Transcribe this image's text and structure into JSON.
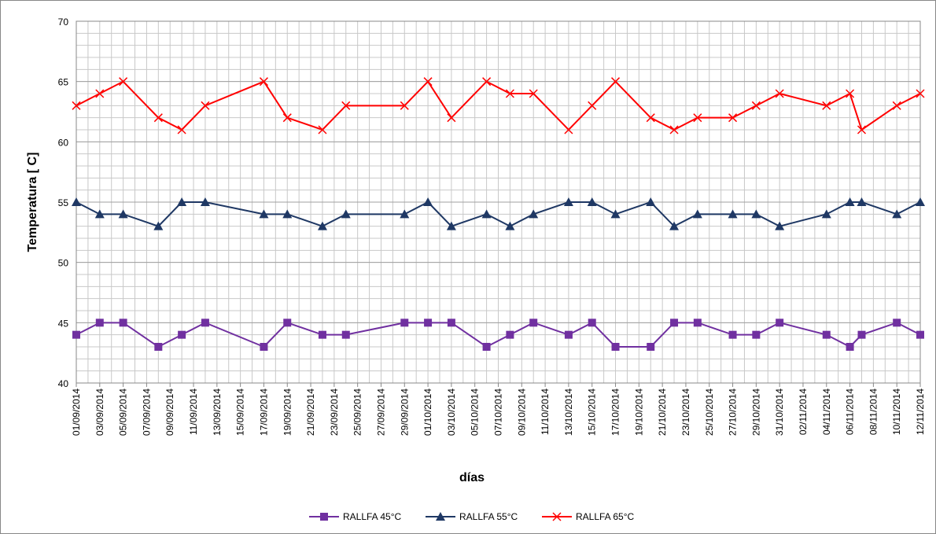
{
  "chart_data": {
    "type": "line",
    "x_label": "días",
    "y_label": "Temperatura [ C]",
    "x": [
      "01/09/2014",
      "03/09/2014",
      "05/09/2014",
      "08/09/2014",
      "10/09/2014",
      "12/09/2014",
      "17/09/2014",
      "19/09/2014",
      "22/09/2014",
      "24/09/2014",
      "29/09/2014",
      "01/10/2014",
      "03/10/2014",
      "06/10/2014",
      "08/10/2014",
      "10/10/2014",
      "13/10/2014",
      "15/10/2014",
      "17/10/2014",
      "20/10/2014",
      "22/10/2014",
      "24/10/2014",
      "27/10/2014",
      "29/10/2014",
      "31/10/2014",
      "04/11/2014",
      "06/11/2014",
      "07/11/2014",
      "10/11/2014",
      "12/11/2014"
    ],
    "xlim": [
      "01/09/2014",
      "12/11/2014"
    ],
    "xticks": [
      "01/09/2014",
      "03/09/2014",
      "05/09/2014",
      "07/09/2014",
      "09/09/2014",
      "11/09/2014",
      "13/09/2014",
      "15/09/2014",
      "17/09/2014",
      "19/09/2014",
      "21/09/2014",
      "23/09/2014",
      "25/09/2014",
      "27/09/2014",
      "29/09/2014",
      "01/10/2014",
      "03/10/2014",
      "05/10/2014",
      "07/10/2014",
      "09/10/2014",
      "11/10/2014",
      "13/10/2014",
      "15/10/2014",
      "17/10/2014",
      "19/10/2014",
      "21/10/2014",
      "23/10/2014",
      "25/10/2014",
      "27/10/2014",
      "29/10/2014",
      "31/10/2014",
      "02/11/2014",
      "04/11/2014",
      "06/11/2014",
      "08/11/2014",
      "10/11/2014",
      "12/11/2014"
    ],
    "ylim": [
      40,
      70
    ],
    "yticks": [
      40,
      45,
      50,
      55,
      60,
      65,
      70
    ],
    "grid": true,
    "legend": "bottom",
    "series": [
      {
        "name": "RALLFA 45°C",
        "color": "#7030a0",
        "marker": "square",
        "values": [
          44,
          45,
          45,
          43,
          44,
          45,
          43,
          45,
          44,
          44,
          45,
          45,
          45,
          43,
          44,
          45,
          44,
          45,
          43,
          43,
          45,
          45,
          44,
          44,
          45,
          44,
          43,
          44,
          45,
          44
        ]
      },
      {
        "name": "RALLFA 55°C",
        "color": "#1f3864",
        "marker": "triangle",
        "values": [
          55,
          54,
          54,
          53,
          55,
          55,
          54,
          54,
          53,
          54,
          54,
          55,
          53,
          54,
          53,
          54,
          55,
          55,
          54,
          55,
          53,
          54,
          54,
          54,
          53,
          54,
          55,
          55,
          54,
          55
        ]
      },
      {
        "name": "RALLFA 65°C",
        "color": "#ff0000",
        "marker": "x",
        "values": [
          63,
          64,
          65,
          62,
          61,
          63,
          65,
          62,
          61,
          63,
          63,
          65,
          62,
          65,
          64,
          64,
          61,
          63,
          65,
          62,
          61,
          62,
          62,
          63,
          64,
          63,
          64,
          61,
          63,
          64
        ]
      }
    ]
  }
}
